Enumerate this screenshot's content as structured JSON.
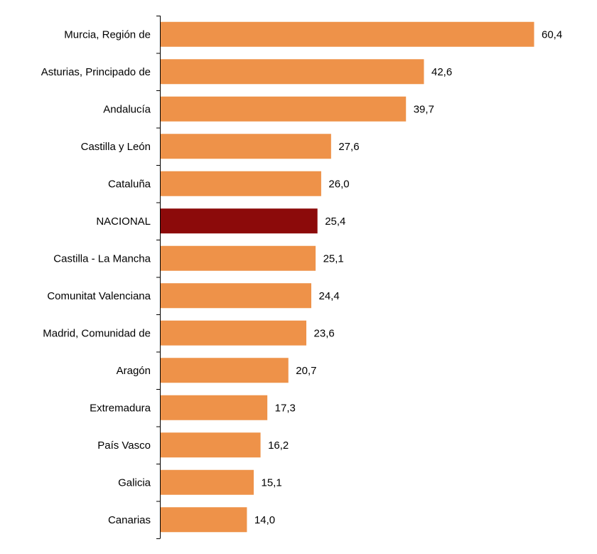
{
  "chart_data": {
    "type": "bar",
    "orientation": "horizontal",
    "categories": [
      "Murcia, Región de",
      "Asturias, Principado de",
      "Andalucía",
      "Castilla y León",
      "Cataluña",
      "NACIONAL",
      "Castilla - La Mancha",
      "Comunitat Valenciana",
      "Madrid, Comunidad de",
      "Aragón",
      "Extremadura",
      "País Vasco",
      "Galicia",
      "Canarias"
    ],
    "values": [
      60.4,
      42.6,
      39.7,
      27.6,
      26.0,
      25.4,
      25.1,
      24.4,
      23.6,
      20.7,
      17.3,
      16.2,
      15.1,
      14.0
    ],
    "value_labels": [
      "60,4",
      "42,6",
      "39,7",
      "27,6",
      "26,0",
      "25,4",
      "25,1",
      "24,4",
      "23,6",
      "20,7",
      "17,3",
      "16,2",
      "15,1",
      "14,0"
    ],
    "highlight_category": "NACIONAL",
    "colors": {
      "bar": "#EE9249",
      "highlight": "#8C0A0A",
      "axis": "#000000"
    },
    "title": "",
    "xlabel": "",
    "ylabel": "",
    "xlim": [
      0,
      60.4
    ],
    "grid": false,
    "legend": "none"
  }
}
